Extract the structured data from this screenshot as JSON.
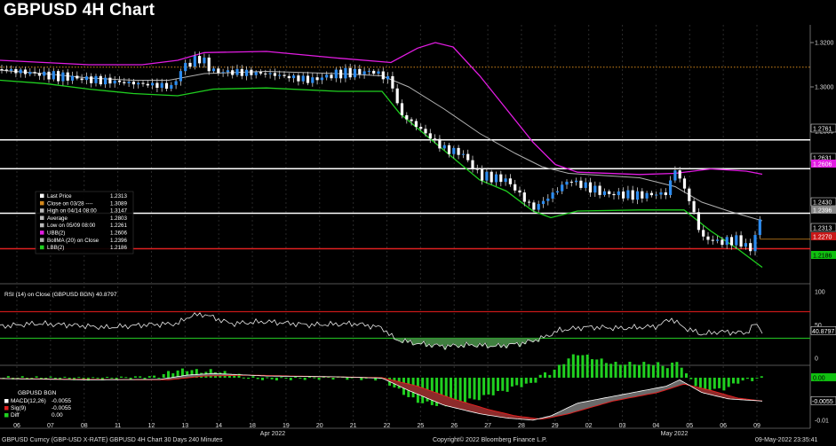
{
  "title": "GBPUSD 4H Chart",
  "colors": {
    "up_candle": "#2c8cf0",
    "down_candle": "#ffffff",
    "average": "#b0b0b0",
    "ubb": "#e21ce2",
    "lbb": "#20d020",
    "resistance": "#ffffff",
    "support": "#e02020",
    "dotted": "#d4881c",
    "macd": "#ffffff",
    "sig": "#e02020",
    "diff": "#20d020"
  },
  "chart_data": [
    {
      "type": "line",
      "name": "price",
      "ylim": [
        1.212,
        1.328
      ],
      "y_ticks": [
        "1.3200",
        "1.3000",
        "1.2800"
      ],
      "x_ticks": [
        "06",
        "07",
        "08",
        "11",
        "12",
        "13",
        "14",
        "18",
        "19",
        "20",
        "21",
        "22",
        "25",
        "26",
        "27",
        "28",
        "29",
        "02",
        "03",
        "04",
        "05",
        "06",
        "09"
      ],
      "x_month_labels": [
        "Apr 2022",
        "May 2022"
      ],
      "horizontal_levels": [
        1.2761,
        1.2631,
        1.243,
        1.227
      ],
      "dotted_level": 1.3089,
      "series": [
        {
          "name": "Average",
          "points": [
            [
              0,
              1.3075
            ],
            [
              50,
              1.306
            ],
            [
              100,
              1.304
            ],
            [
              150,
              1.303
            ],
            [
              190,
              1.303
            ],
            [
              230,
              1.306
            ],
            [
              300,
              1.307
            ],
            [
              380,
              1.306
            ],
            [
              430,
              1.305
            ],
            [
              460,
              1.3
            ],
            [
              500,
              1.29
            ],
            [
              540,
              1.279
            ],
            [
              580,
              1.27
            ],
            [
              610,
              1.264
            ],
            [
              640,
              1.261
            ],
            [
              680,
              1.26
            ],
            [
              720,
              1.259
            ],
            [
              760,
              1.255
            ],
            [
              790,
              1.248
            ],
            [
              820,
              1.244
            ],
            [
              858,
              1.2396
            ]
          ]
        },
        {
          "name": "UBB",
          "points": [
            [
              0,
              1.312
            ],
            [
              50,
              1.311
            ],
            [
              100,
              1.31
            ],
            [
              160,
              1.31
            ],
            [
              200,
              1.312
            ],
            [
              230,
              1.3155
            ],
            [
              300,
              1.316
            ],
            [
              380,
              1.313
            ],
            [
              440,
              1.311
            ],
            [
              470,
              1.3175
            ],
            [
              490,
              1.32
            ],
            [
              510,
              1.318
            ],
            [
              540,
              1.305
            ],
            [
              570,
              1.29
            ],
            [
              600,
              1.275
            ],
            [
              625,
              1.265
            ],
            [
              650,
              1.2615
            ],
            [
              720,
              1.2605
            ],
            [
              760,
              1.261
            ],
            [
              800,
              1.263
            ],
            [
              840,
              1.262
            ],
            [
              858,
              1.2606
            ]
          ]
        },
        {
          "name": "LBB",
          "points": [
            [
              0,
              1.303
            ],
            [
              50,
              1.3015
            ],
            [
              100,
              1.299
            ],
            [
              150,
              1.297
            ],
            [
              200,
              1.296
            ],
            [
              240,
              1.299
            ],
            [
              300,
              1.2995
            ],
            [
              380,
              1.298
            ],
            [
              430,
              1.298
            ],
            [
              450,
              1.288
            ],
            [
              480,
              1.278
            ],
            [
              510,
              1.268
            ],
            [
              540,
              1.258
            ],
            [
              570,
              1.253
            ],
            [
              600,
              1.244
            ],
            [
              620,
              1.241
            ],
            [
              650,
              1.244
            ],
            [
              720,
              1.2445
            ],
            [
              770,
              1.2445
            ],
            [
              800,
              1.235
            ],
            [
              830,
              1.227
            ],
            [
              858,
              1.2186
            ]
          ]
        }
      ],
      "right_labels": [
        "1.2761",
        "1.2631",
        "1.2606",
        "1.2430",
        "1.2396",
        "1.2313",
        "1.2270",
        "1.2186"
      ]
    },
    {
      "type": "line",
      "name": "RSI (14)",
      "ylim": [
        0,
        100
      ],
      "y_ticks": [
        "100",
        "50",
        "0"
      ],
      "levels": [
        70,
        30
      ],
      "last": 40.8797,
      "right_label": "40.8797"
    },
    {
      "type": "bar",
      "name": "MACD",
      "ylim": [
        -0.0115,
        0.0025
      ],
      "y_ticks": [
        "0.00",
        "-0.01"
      ],
      "right_labels": [
        "0.00",
        "-0.0055"
      ]
    }
  ],
  "legend": {
    "rows": [
      {
        "label": "Last Price",
        "value": "1.2313",
        "color": "#ffffff"
      },
      {
        "label": "Close on 03/28 ----",
        "value": "1.3089",
        "color": "#d4881c"
      },
      {
        "label": "High on 04/14 08:00",
        "value": "1.3147",
        "color": "#bbbbbb"
      },
      {
        "label": "Average",
        "value": "1.2803",
        "color": "#bbbbbb"
      },
      {
        "label": "Low on 05/09 08:00",
        "value": "1.2261",
        "color": "#bbbbbb"
      },
      {
        "label": "UBB(2)",
        "value": "1.2606",
        "color": "#e21ce2"
      },
      {
        "label": "BollMA (20)  on Close",
        "value": "1.2396",
        "color": "#b0b0b0"
      },
      {
        "label": "LBB(2)",
        "value": "1.2186",
        "color": "#20d020"
      }
    ]
  },
  "rsi_header": "RSI (14)  on Close (GBPUSD BGN)  40.8797",
  "macd_legend": {
    "title": "GBPUSD BGN",
    "rows": [
      {
        "label": "MACD(12,26)",
        "value": "-0.0055",
        "color": "#ffffff"
      },
      {
        "label": "Sig(9)",
        "value": "-0.0055",
        "color": "#e02020"
      },
      {
        "label": "Diff",
        "value": "0.00",
        "color": "#20d020"
      }
    ]
  },
  "footer": {
    "left": "GBPUSD Curncy (GBP-USD X-RATE)  GBPUSD 4H Chart  30 Days 240 Minutes",
    "center": "Copyright© 2022 Bloomberg Finance L.P.",
    "right": "09-May-2022 23:35:41"
  }
}
